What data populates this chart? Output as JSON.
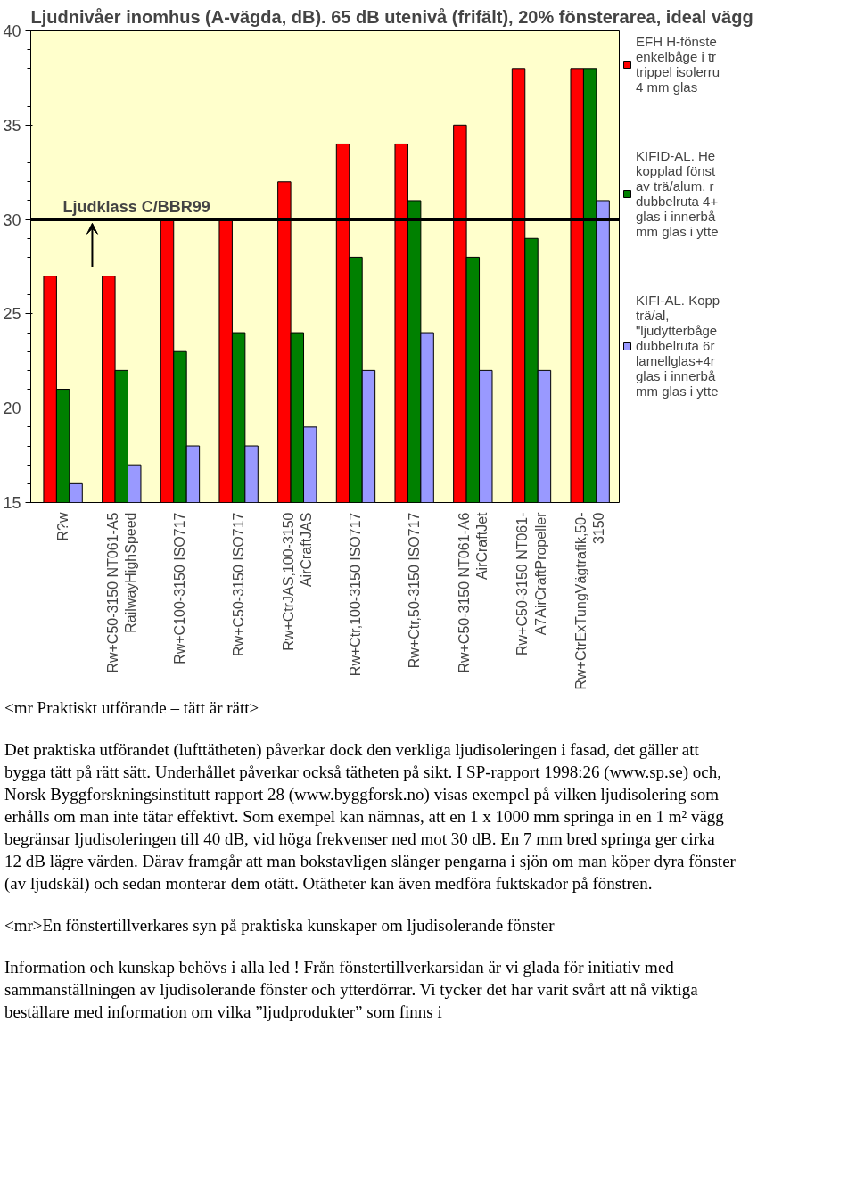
{
  "chart_data": {
    "type": "bar",
    "title": "Ljudnivåer inomhus (A-vägda, dB). 65 dB utenivå (frifält), 20% fönsterarea, ideal vägg",
    "categories": [
      "R?w",
      "Rw+C50-3150 NT061-A5\nRailwayHighSpeed",
      "Rw+C100-3150 ISO717",
      "Rw+C50-3150 ISO717",
      "Rw+CtrJAS,100-3150\nAirCraftJAS",
      "Rw+Ctr,100-3150 ISO717",
      "Rw+Ctr,50-3150 ISO717",
      "Rw+C50-3150 NT061-A6\nAirCraftJet",
      "Rw+C50-3150 NT061-\nA7AirCraftPropeller",
      "Rw+CtrExTungVägtrafik,50-\n3150"
    ],
    "series": [
      {
        "name": "EFH H-fönste\nenkelbåge i tr\ntrippel isolerru\n4 mm glas",
        "color": "#ff0000",
        "values": [
          27,
          27,
          30,
          30,
          32,
          34,
          34,
          35,
          38,
          38
        ]
      },
      {
        "name": "KIFID-AL. He\nkopplad fönst\nav trä/alum. r\ndubbelruta 4+\nglas i innerbå\nmm glas i ytte",
        "color": "#008000",
        "values": [
          21,
          22,
          23,
          24,
          24,
          28,
          31,
          28,
          29,
          38
        ]
      },
      {
        "name": "KIFI-AL. Kopp\nträ/al,\n\"ljudytterbåge\ndubbelruta 6r\nlamellglas+4r\nglas i innerbå\nmm glas i ytte",
        "color": "#9999ff",
        "values": [
          16,
          17,
          18,
          18,
          19,
          22,
          24,
          22,
          22,
          31
        ]
      }
    ],
    "ylim": [
      15,
      40
    ],
    "yticks": [
      15,
      20,
      25,
      30,
      35,
      40
    ],
    "grid": false,
    "legend": "right",
    "ref_lines": [
      {
        "axis": "y",
        "value": 30,
        "label": "Ljudklass C/BBR99",
        "color": "#000000"
      }
    ],
    "annotations": [
      "<mr Praktiskt utförande – tätt är rätt>",
      "Det praktiska utförandet (lufttätheten) påverkar dock den verkliga ljudisoleringen i fasad, det gäller att bygga tätt på rätt sätt. Underhållet påverkar också tätheten på sikt. I SP-rapport 1998:26 (www.sp.se) och, Norsk Byggforskningsinstitutt rapport 28 (www.byggforsk.no) visas exempel på vilken ljudisolering som erhålls om man inte tätar effektivt. Som exempel kan nämnas, att en 1 x 1000 mm springa in en 1 m² vägg begränsar ljudisoleringen till 40 dB, vid höga frekvenser ned mot 30 dB. En 7 mm bred springa ger cirka 12 dB lägre värden. Därav framgår att man bokstavligen slänger pengarna i sjön om man köper dyra fönster (av ljudskäl) och sedan monterar dem otätt. Otätheter kan även medföra fuktskador på fönstren.",
      "<mr>En fönstertillverkares syn på praktiska kunskaper om ljudisolerande fönster",
      "Information och kunskap behövs i alla led ! Från fönstertillverkarsidan är vi glada för initiativ med sammanställningen av ljudisolerande fönster och ytterdörrar. Vi tycker det har varit svårt att nå viktiga beställare med information om vilka ”ljudprodukter” som finns i"
    ]
  }
}
